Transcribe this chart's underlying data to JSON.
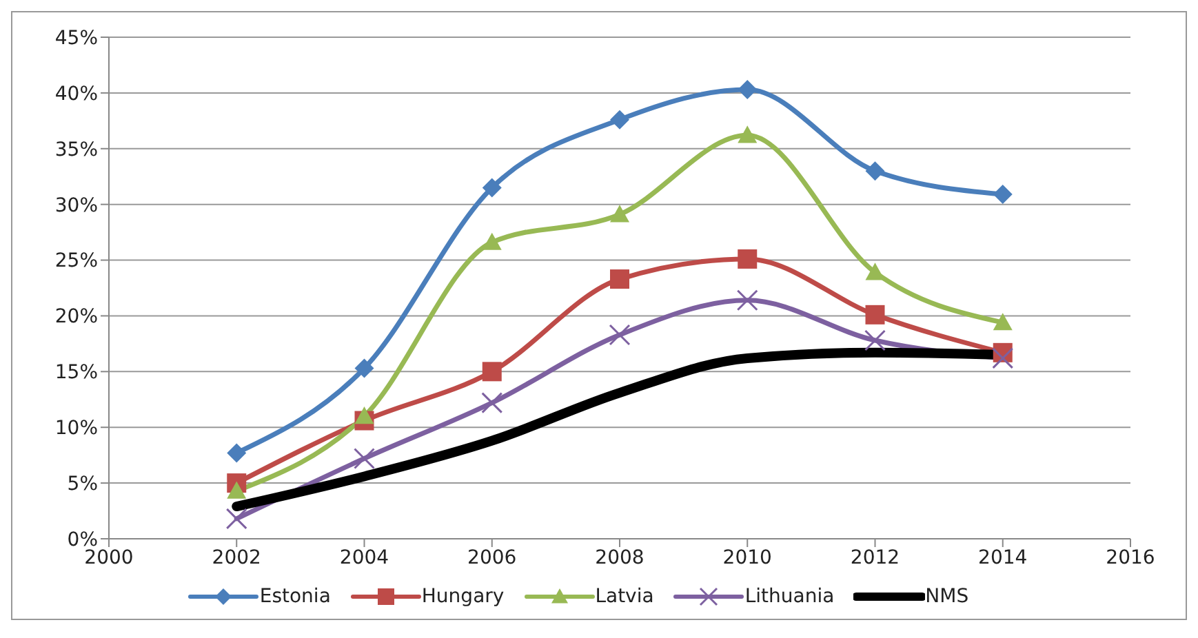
{
  "chart_data": {
    "type": "line",
    "x": [
      2002,
      2004,
      2006,
      2008,
      2010,
      2012,
      2014
    ],
    "series": [
      {
        "name": "Estonia",
        "color": "#4a7ebb",
        "marker": "diamond",
        "values": [
          7.7,
          15.3,
          31.5,
          37.6,
          40.3,
          33.0,
          30.9
        ]
      },
      {
        "name": "Hungary",
        "color": "#be4b48",
        "marker": "square",
        "values": [
          5.0,
          10.6,
          15.0,
          23.3,
          25.1,
          20.1,
          16.7
        ]
      },
      {
        "name": "Latvia",
        "color": "#98b954",
        "marker": "triangle",
        "values": [
          4.3,
          11.0,
          26.6,
          29.1,
          36.2,
          23.9,
          19.4
        ]
      },
      {
        "name": "Lithuania",
        "color": "#7d60a0",
        "marker": "cross",
        "values": [
          1.8,
          7.2,
          12.2,
          18.3,
          21.4,
          17.8,
          16.2
        ]
      },
      {
        "name": "NMS",
        "color": "#000000",
        "marker": "none",
        "values": [
          2.9,
          5.6,
          8.8,
          13.1,
          16.2,
          16.7,
          16.5
        ]
      }
    ],
    "xlim": [
      2000,
      2016
    ],
    "xticks": [
      2000,
      2002,
      2004,
      2006,
      2008,
      2010,
      2012,
      2014,
      2016
    ],
    "ylim": [
      0,
      45
    ],
    "yticks": [
      {
        "value": 0,
        "label": "0%"
      },
      {
        "value": 5,
        "label": "5%"
      },
      {
        "value": 10,
        "label": "10%"
      },
      {
        "value": 15,
        "label": "15%"
      },
      {
        "value": 20,
        "label": "20%"
      },
      {
        "value": 25,
        "label": "25%"
      },
      {
        "value": 30,
        "label": "30%"
      },
      {
        "value": 35,
        "label": "35%"
      },
      {
        "value": 40,
        "label": "40%"
      },
      {
        "value": 45,
        "label": "45%"
      }
    ],
    "grid": "y",
    "legend": "bottom"
  }
}
